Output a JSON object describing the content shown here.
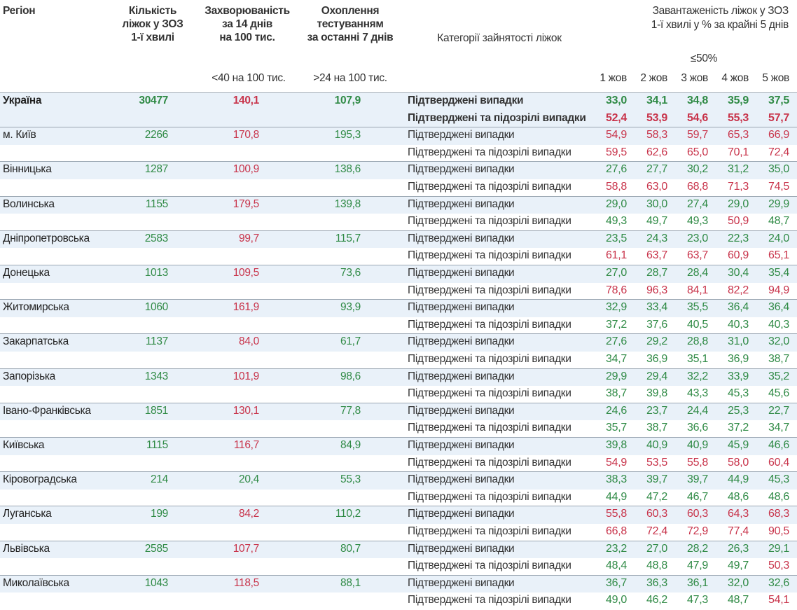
{
  "header": {
    "region": "Регіон",
    "beds": [
      "Кількість",
      "ліжок у ЗОЗ",
      "1-ї хвилі"
    ],
    "incidence": [
      "Захворюваність",
      "за 14 днів",
      "на 100 тис."
    ],
    "testing": [
      "Охоплення",
      "тестуванням",
      "за останні 7 днів"
    ],
    "category": "Категорії зайнятості ліжок",
    "occupancy": [
      "Завантаженість ліжок у ЗОЗ",
      "1-ї хвилі у % за крайні 5 днів"
    ],
    "occupancy_threshold": "≤50%",
    "incidence_threshold": "<40 на 100 тис.",
    "testing_threshold": ">24 на 100 тис.",
    "days": [
      "1 жов",
      "2 жов",
      "3 жов",
      "4 жов",
      "5 жов"
    ]
  },
  "palette": {
    "g": "#2f8a45",
    "r": "#c8334a"
  },
  "beds_color": "g",
  "rows": [
    {
      "region": "Україна",
      "emphasis": true,
      "beds": "30477",
      "incidence": "140,1",
      "incidence_color": "r",
      "testing": "107,9",
      "testing_color": "g",
      "cases": [
        {
          "category": "Підтверджені випадки",
          "values": [
            "33,0",
            "34,1",
            "34,8",
            "35,9",
            "37,5"
          ],
          "colors": [
            "g",
            "g",
            "g",
            "g",
            "g"
          ]
        },
        {
          "category": "Підтверджені та підозрілі випадки",
          "values": [
            "52,4",
            "53,9",
            "54,6",
            "55,3",
            "57,7"
          ],
          "colors": [
            "r",
            "r",
            "r",
            "r",
            "r"
          ]
        }
      ]
    },
    {
      "region": "м. Київ",
      "beds": "2266",
      "incidence": "170,8",
      "incidence_color": "r",
      "testing": "195,3",
      "testing_color": "g",
      "cases": [
        {
          "category": "Підтверджені випадки",
          "values": [
            "54,9",
            "58,3",
            "59,7",
            "65,3",
            "66,9"
          ],
          "colors": [
            "r",
            "r",
            "r",
            "r",
            "r"
          ]
        },
        {
          "category": "Підтверджені та підозрілі випадки",
          "values": [
            "59,5",
            "62,6",
            "65,0",
            "70,1",
            "72,4"
          ],
          "colors": [
            "r",
            "r",
            "r",
            "r",
            "r"
          ]
        }
      ]
    },
    {
      "region": "Вінницька",
      "beds": "1287",
      "incidence": "100,9",
      "incidence_color": "r",
      "testing": "138,6",
      "testing_color": "g",
      "cases": [
        {
          "category": "Підтверджені випадки",
          "values": [
            "27,6",
            "27,7",
            "30,2",
            "31,2",
            "35,0"
          ],
          "colors": [
            "g",
            "g",
            "g",
            "g",
            "g"
          ]
        },
        {
          "category": "Підтверджені та підозрілі випадки",
          "values": [
            "58,8",
            "63,0",
            "68,8",
            "71,3",
            "74,5"
          ],
          "colors": [
            "r",
            "r",
            "r",
            "r",
            "r"
          ]
        }
      ]
    },
    {
      "region": "Волинська",
      "beds": "1155",
      "incidence": "179,5",
      "incidence_color": "r",
      "testing": "139,8",
      "testing_color": "g",
      "cases": [
        {
          "category": "Підтверджені випадки",
          "values": [
            "29,0",
            "30,0",
            "27,4",
            "29,0",
            "29,9"
          ],
          "colors": [
            "g",
            "g",
            "g",
            "g",
            "g"
          ]
        },
        {
          "category": "Підтверджені та підозрілі випадки",
          "values": [
            "49,3",
            "49,7",
            "49,3",
            "50,9",
            "48,7"
          ],
          "colors": [
            "g",
            "g",
            "g",
            "r",
            "g"
          ]
        }
      ]
    },
    {
      "region": "Дніпропетровська",
      "beds": "2583",
      "incidence": "99,7",
      "incidence_color": "r",
      "testing": "115,7",
      "testing_color": "g",
      "cases": [
        {
          "category": "Підтверджені випадки",
          "values": [
            "23,5",
            "24,3",
            "23,0",
            "22,3",
            "24,0"
          ],
          "colors": [
            "g",
            "g",
            "g",
            "g",
            "g"
          ]
        },
        {
          "category": "Підтверджені та підозрілі випадки",
          "values": [
            "61,1",
            "63,7",
            "63,7",
            "60,9",
            "65,1"
          ],
          "colors": [
            "r",
            "r",
            "r",
            "r",
            "r"
          ]
        }
      ]
    },
    {
      "region": "Донецька",
      "beds": "1013",
      "incidence": "109,5",
      "incidence_color": "r",
      "testing": "73,6",
      "testing_color": "g",
      "cases": [
        {
          "category": "Підтверджені випадки",
          "values": [
            "27,0",
            "28,7",
            "28,4",
            "30,4",
            "35,4"
          ],
          "colors": [
            "g",
            "g",
            "g",
            "g",
            "g"
          ]
        },
        {
          "category": "Підтверджені та підозрілі випадки",
          "values": [
            "78,6",
            "96,3",
            "84,1",
            "82,2",
            "94,9"
          ],
          "colors": [
            "r",
            "r",
            "r",
            "r",
            "r"
          ]
        }
      ]
    },
    {
      "region": "Житомирська",
      "beds": "1060",
      "incidence": "161,9",
      "incidence_color": "r",
      "testing": "93,9",
      "testing_color": "g",
      "cases": [
        {
          "category": "Підтверджені випадки",
          "values": [
            "32,9",
            "33,4",
            "35,5",
            "36,4",
            "36,4"
          ],
          "colors": [
            "g",
            "g",
            "g",
            "g",
            "g"
          ]
        },
        {
          "category": "Підтверджені та підозрілі випадки",
          "values": [
            "37,2",
            "37,6",
            "40,5",
            "40,3",
            "40,3"
          ],
          "colors": [
            "g",
            "g",
            "g",
            "g",
            "g"
          ]
        }
      ]
    },
    {
      "region": "Закарпатська",
      "beds": "1137",
      "incidence": "84,0",
      "incidence_color": "r",
      "testing": "61,7",
      "testing_color": "g",
      "cases": [
        {
          "category": "Підтверджені випадки",
          "values": [
            "27,6",
            "29,2",
            "28,8",
            "31,0",
            "32,0"
          ],
          "colors": [
            "g",
            "g",
            "g",
            "g",
            "g"
          ]
        },
        {
          "category": "Підтверджені та підозрілі випадки",
          "values": [
            "34,7",
            "36,9",
            "35,1",
            "36,9",
            "38,7"
          ],
          "colors": [
            "g",
            "g",
            "g",
            "g",
            "g"
          ]
        }
      ]
    },
    {
      "region": "Запорізька",
      "beds": "1343",
      "incidence": "101,9",
      "incidence_color": "r",
      "testing": "98,6",
      "testing_color": "g",
      "cases": [
        {
          "category": "Підтверджені випадки",
          "values": [
            "29,9",
            "29,4",
            "32,2",
            "33,9",
            "35,2"
          ],
          "colors": [
            "g",
            "g",
            "g",
            "g",
            "g"
          ]
        },
        {
          "category": "Підтверджені та підозрілі випадки",
          "values": [
            "38,7",
            "39,8",
            "43,3",
            "45,3",
            "45,6"
          ],
          "colors": [
            "g",
            "g",
            "g",
            "g",
            "g"
          ]
        }
      ]
    },
    {
      "region": "Івано-Франківська",
      "beds": "1851",
      "incidence": "130,1",
      "incidence_color": "r",
      "testing": "77,8",
      "testing_color": "g",
      "cases": [
        {
          "category": "Підтверджені випадки",
          "values": [
            "24,6",
            "23,7",
            "24,4",
            "25,3",
            "22,7"
          ],
          "colors": [
            "g",
            "g",
            "g",
            "g",
            "g"
          ]
        },
        {
          "category": "Підтверджені та підозрілі випадки",
          "values": [
            "35,7",
            "38,7",
            "36,6",
            "37,2",
            "34,7"
          ],
          "colors": [
            "g",
            "g",
            "g",
            "g",
            "g"
          ]
        }
      ]
    },
    {
      "region": "Київська",
      "beds": "1115",
      "incidence": "116,7",
      "incidence_color": "r",
      "testing": "84,9",
      "testing_color": "g",
      "cases": [
        {
          "category": "Підтверджені випадки",
          "values": [
            "39,8",
            "40,9",
            "40,9",
            "45,9",
            "46,6"
          ],
          "colors": [
            "g",
            "g",
            "g",
            "g",
            "g"
          ]
        },
        {
          "category": "Підтверджені та підозрілі випадки",
          "values": [
            "54,9",
            "53,5",
            "55,8",
            "58,0",
            "60,4"
          ],
          "colors": [
            "r",
            "r",
            "r",
            "r",
            "r"
          ]
        }
      ]
    },
    {
      "region": "Кіровоградська",
      "beds": "214",
      "incidence": "20,4",
      "incidence_color": "g",
      "testing": "55,3",
      "testing_color": "g",
      "cases": [
        {
          "category": "Підтверджені випадки",
          "values": [
            "38,3",
            "39,7",
            "39,7",
            "44,9",
            "45,3"
          ],
          "colors": [
            "g",
            "g",
            "g",
            "g",
            "g"
          ]
        },
        {
          "category": "Підтверджені та підозрілі випадки",
          "values": [
            "44,9",
            "47,2",
            "46,7",
            "48,6",
            "48,6"
          ],
          "colors": [
            "g",
            "g",
            "g",
            "g",
            "g"
          ]
        }
      ]
    },
    {
      "region": "Луганська",
      "beds": "199",
      "incidence": "84,2",
      "incidence_color": "r",
      "testing": "110,2",
      "testing_color": "g",
      "cases": [
        {
          "category": "Підтверджені випадки",
          "values": [
            "55,8",
            "60,3",
            "60,3",
            "64,3",
            "68,3"
          ],
          "colors": [
            "r",
            "r",
            "r",
            "r",
            "r"
          ]
        },
        {
          "category": "Підтверджені та підозрілі випадки",
          "values": [
            "66,8",
            "72,4",
            "72,9",
            "77,4",
            "90,5"
          ],
          "colors": [
            "r",
            "r",
            "r",
            "r",
            "r"
          ]
        }
      ]
    },
    {
      "region": "Львівська",
      "beds": "2585",
      "incidence": "107,7",
      "incidence_color": "r",
      "testing": "80,7",
      "testing_color": "g",
      "cases": [
        {
          "category": "Підтверджені випадки",
          "values": [
            "23,2",
            "27,0",
            "28,2",
            "26,3",
            "29,1"
          ],
          "colors": [
            "g",
            "g",
            "g",
            "g",
            "g"
          ]
        },
        {
          "category": "Підтверджені та підозрілі випадки",
          "values": [
            "48,4",
            "48,8",
            "47,9",
            "49,7",
            "50,3"
          ],
          "colors": [
            "g",
            "g",
            "g",
            "g",
            "r"
          ]
        }
      ]
    },
    {
      "region": "Миколаївська",
      "beds": "1043",
      "incidence": "118,5",
      "incidence_color": "r",
      "testing": "88,1",
      "testing_color": "g",
      "cases": [
        {
          "category": "Підтверджені випадки",
          "values": [
            "36,7",
            "36,3",
            "36,1",
            "32,0",
            "32,6"
          ],
          "colors": [
            "g",
            "g",
            "g",
            "g",
            "g"
          ]
        },
        {
          "category": "Підтверджені та підозрілі випадки",
          "values": [
            "49,0",
            "46,2",
            "47,3",
            "48,7",
            "54,1"
          ],
          "colors": [
            "g",
            "g",
            "g",
            "g",
            "r"
          ]
        }
      ]
    }
  ]
}
